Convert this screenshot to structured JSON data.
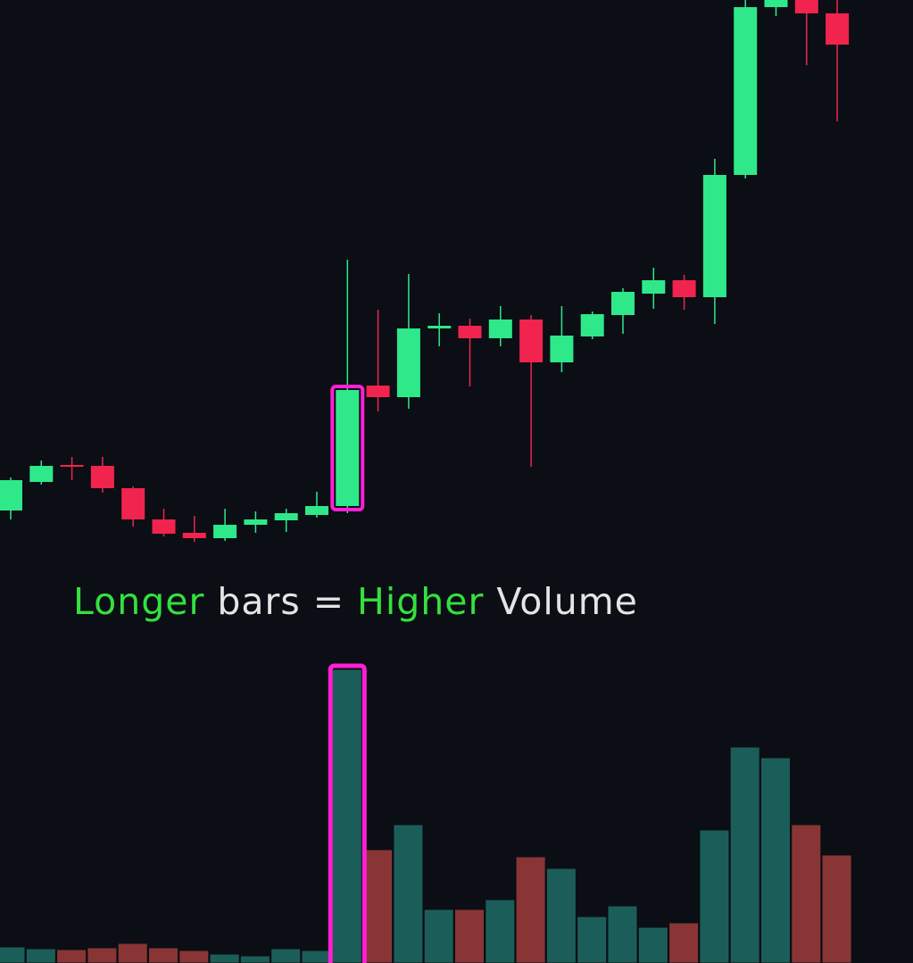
{
  "chart_data": {
    "type": "candlestick",
    "annotation": [
      {
        "text": "Longer",
        "color": "#35e03f"
      },
      {
        "text": "bars",
        "color": "#e4e4e4"
      },
      {
        "text": "=",
        "color": "#e4e4e4"
      },
      {
        "text": "Higher",
        "color": "#35e03f"
      },
      {
        "text": "Volume",
        "color": "#e4e4e4"
      }
    ],
    "up_color": "#2ee88a",
    "down_color": "#f0244e",
    "volume_up_color": "#1b5e59",
    "volume_down_color": "#8a3535",
    "highlight_color": "#ff1fd6",
    "highlight_index": 11,
    "open": [
      507,
      539,
      558,
      557,
      532,
      497,
      482,
      476,
      491,
      496,
      502,
      512,
      647,
      634,
      711,
      714,
      700,
      721,
      673,
      702,
      726,
      750,
      765,
      746,
      883,
      1071,
      1079,
      1064
    ],
    "high": [
      544,
      563,
      567,
      567,
      534,
      509,
      501,
      509,
      506,
      509,
      528,
      788,
      732,
      772,
      728,
      722,
      736,
      726,
      736,
      730,
      756,
      779,
      771,
      901,
      1079,
      1079,
      1079,
      1079
    ],
    "low": [
      497,
      536,
      541,
      527,
      489,
      478,
      472,
      473,
      482,
      483,
      499,
      504,
      618,
      621,
      691,
      646,
      691,
      556,
      662,
      699,
      705,
      733,
      732,
      716,
      879,
      1061,
      1006,
      943
    ],
    "close": [
      541,
      557,
      556,
      532,
      497,
      481,
      476,
      491,
      497,
      504,
      512,
      642,
      634,
      711,
      714,
      700,
      721,
      673,
      703,
      727,
      752,
      765,
      746,
      883,
      1071,
      1079,
      1064,
      1029
    ],
    "volume": [
      18,
      16,
      15,
      17,
      22,
      17,
      14,
      10,
      8,
      16,
      14,
      329,
      127,
      155,
      60,
      60,
      71,
      119,
      106,
      52,
      64,
      40,
      45,
      149,
      242,
      230,
      155,
      121
    ],
    "ylim": [
      0,
      1079
    ],
    "vlim": [
      0,
      1079
    ]
  }
}
